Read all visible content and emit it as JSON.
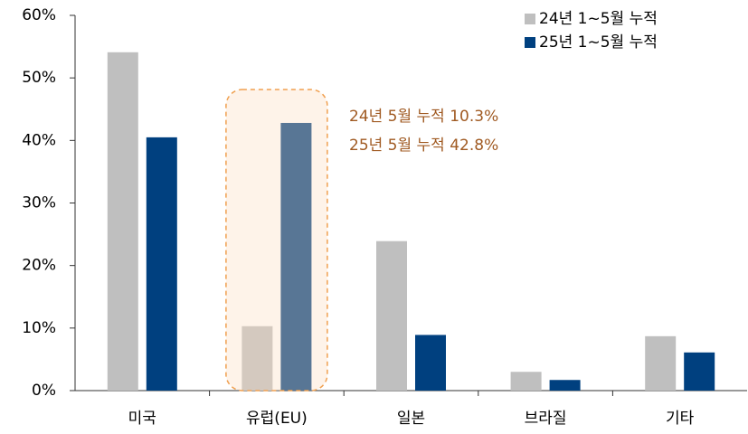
{
  "chart_data": {
    "type": "bar",
    "categories": [
      "미국",
      "유럽(EU)",
      "일본",
      "브라질",
      "기타"
    ],
    "series": [
      {
        "name": "24년 1~5월 누적",
        "color": "#bfbfbf",
        "values": [
          54.1,
          10.3,
          23.9,
          3.0,
          8.7
        ]
      },
      {
        "name": "25년 1~5월 누적",
        "color": "#00407f",
        "values": [
          40.5,
          42.8,
          8.9,
          1.7,
          6.1
        ]
      }
    ],
    "ylim": [
      0,
      60
    ],
    "yticks": [
      {
        "value": 0,
        "label": "0%"
      },
      {
        "value": 10,
        "label": "10%"
      },
      {
        "value": 20,
        "label": "20%"
      },
      {
        "value": 30,
        "label": "30%"
      },
      {
        "value": 40,
        "label": "40%"
      },
      {
        "value": 50,
        "label": "50%"
      },
      {
        "value": 60,
        "label": "60%"
      }
    ],
    "annotations": [
      "24년 5월 누적 10.3%",
      "25년 5월 누적 42.8%"
    ],
    "grid": false
  }
}
